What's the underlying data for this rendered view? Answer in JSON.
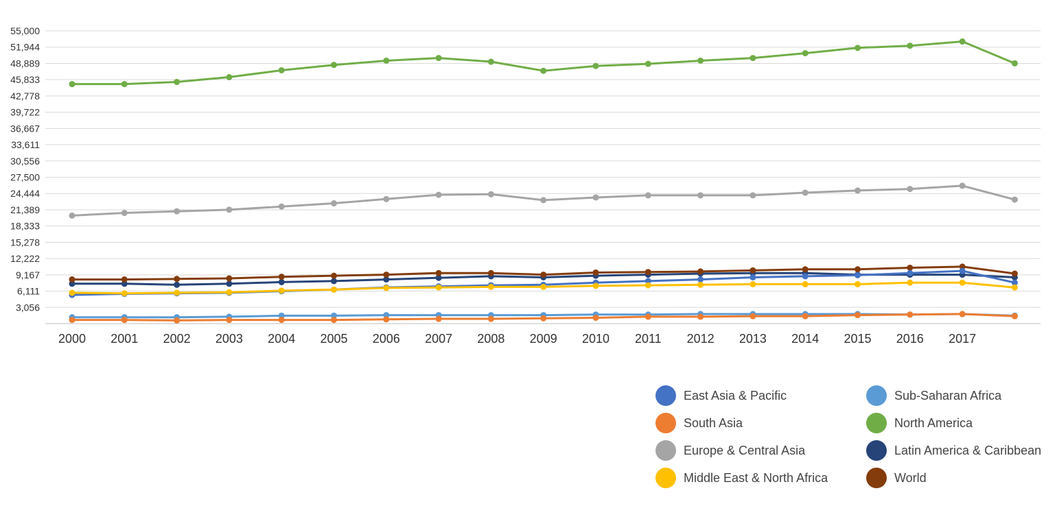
{
  "chart_data": {
    "type": "line",
    "title": "",
    "xlabel": "",
    "ylabel": "",
    "grid": true,
    "legend_position": "bottom-right",
    "ylim": [
      0,
      55000
    ],
    "y_ticks": [
      "3,056",
      "6,111",
      "9,167",
      "12,222",
      "15,278",
      "18,333",
      "21,389",
      "24,444",
      "27,500",
      "30,556",
      "33,611",
      "36,667",
      "39,722",
      "42,778",
      "45,833",
      "48,889",
      "51,944",
      "55,000"
    ],
    "y_tick_values": [
      3056,
      6111,
      9167,
      12222,
      15278,
      18333,
      21389,
      24444,
      27500,
      30556,
      33611,
      36667,
      39722,
      42778,
      45833,
      48889,
      51944,
      55000
    ],
    "categories": [
      "2000",
      "2001",
      "2002",
      "2003",
      "2004",
      "2005",
      "2006",
      "2007",
      "2008",
      "2009",
      "2010",
      "2011",
      "2012",
      "2013",
      "2014",
      "2015",
      "2016",
      "2017",
      ""
    ],
    "series": [
      {
        "name": "North America",
        "color": "#70ad47",
        "values": [
          45000,
          45000,
          45400,
          46300,
          47600,
          48600,
          49400,
          49900,
          49200,
          47500,
          48400,
          48800,
          49400,
          49900,
          50800,
          51800,
          52200,
          53000,
          48900
        ]
      },
      {
        "name": "Europe & Central Asia",
        "color": "#a5a5a5",
        "values": [
          20300,
          20800,
          21100,
          21400,
          22000,
          22600,
          23400,
          24200,
          24300,
          23200,
          23700,
          24100,
          24100,
          24100,
          24600,
          25000,
          25300,
          25900,
          23300
        ]
      },
      {
        "name": "Latin America & Caribbean",
        "color": "#264478",
        "values": [
          7500,
          7500,
          7300,
          7500,
          7800,
          8000,
          8300,
          8600,
          8900,
          8700,
          9000,
          9200,
          9400,
          9500,
          9500,
          9200,
          9200,
          9200,
          8700
        ]
      },
      {
        "name": "World",
        "color": "#843c0c",
        "values": [
          8300,
          8300,
          8400,
          8500,
          8800,
          9000,
          9200,
          9500,
          9500,
          9200,
          9600,
          9700,
          9800,
          10000,
          10200,
          10200,
          10500,
          10700,
          9400
        ]
      },
      {
        "name": "East Asia & Pacific",
        "color": "#4472c4",
        "values": [
          5400,
          5600,
          5700,
          5800,
          6100,
          6400,
          6800,
          7000,
          7200,
          7300,
          7700,
          8000,
          8300,
          8700,
          8900,
          9100,
          9500,
          9900,
          7700
        ]
      },
      {
        "name": "Middle East & North Africa",
        "color": "#ffc000",
        "values": [
          5800,
          5700,
          5800,
          5900,
          6200,
          6400,
          6700,
          6800,
          6900,
          6900,
          7100,
          7200,
          7300,
          7400,
          7400,
          7400,
          7700,
          7700,
          6800
        ]
      },
      {
        "name": "Sub-Saharan Africa",
        "color": "#5b9bd5",
        "values": [
          1200,
          1200,
          1200,
          1300,
          1500,
          1500,
          1600,
          1600,
          1600,
          1600,
          1700,
          1700,
          1800,
          1800,
          1800,
          1800,
          1700,
          1800,
          1500
        ]
      },
      {
        "name": "South Asia",
        "color": "#ed7d31",
        "values": [
          700,
          700,
          600,
          700,
          700,
          700,
          800,
          900,
          900,
          1000,
          1100,
          1300,
          1300,
          1400,
          1400,
          1600,
          1700,
          1800,
          1400
        ]
      }
    ],
    "legend": [
      {
        "name": "East Asia & Pacific",
        "color": "#4472c4"
      },
      {
        "name": "Sub-Saharan Africa",
        "color": "#5b9bd5"
      },
      {
        "name": "South Asia",
        "color": "#ed7d31"
      },
      {
        "name": "North America",
        "color": "#70ad47"
      },
      {
        "name": "Europe & Central Asia",
        "color": "#a5a5a5"
      },
      {
        "name": "Latin America & Caribbean",
        "color": "#264478"
      },
      {
        "name": "Middle East & North Africa",
        "color": "#ffc000"
      },
      {
        "name": "World",
        "color": "#843c0c"
      }
    ]
  }
}
